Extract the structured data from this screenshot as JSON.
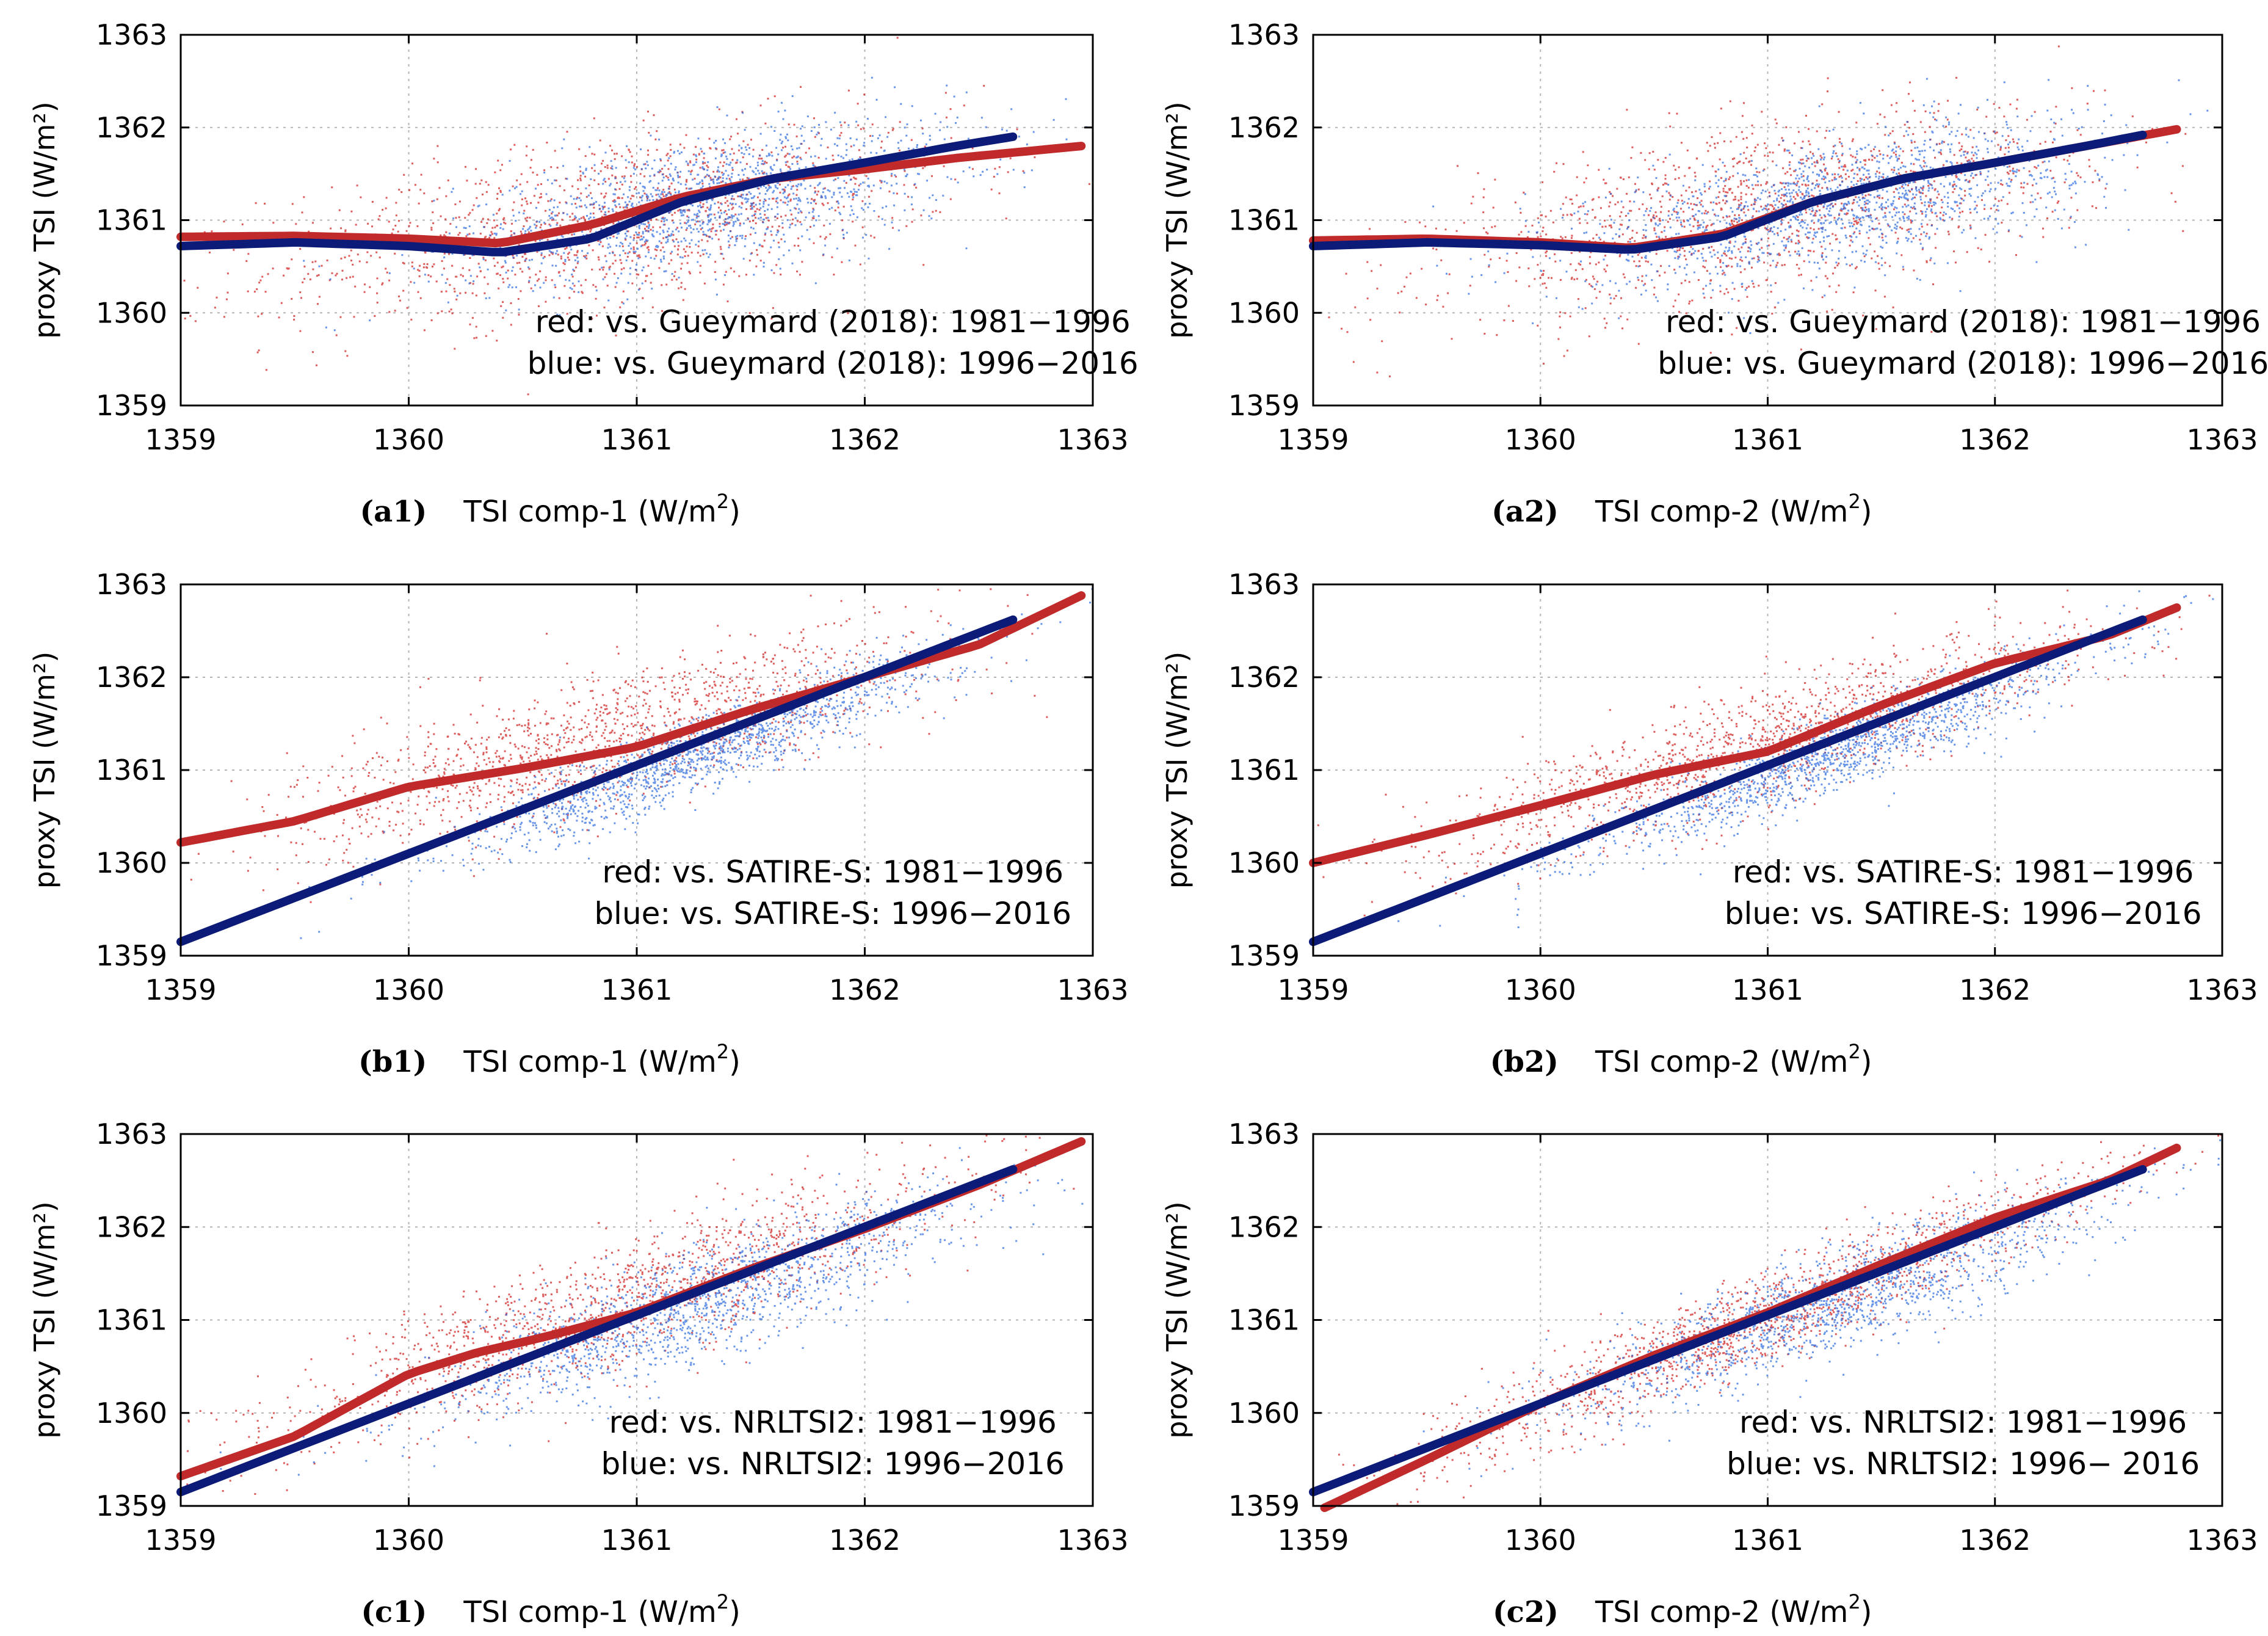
{
  "colors": {
    "red": "#d01818",
    "blue": "#2a6ae0",
    "red_curve": "#c02a2a",
    "blue_curve": "#0c1a78"
  },
  "chart_data": [
    {
      "id": "a1",
      "type": "scatter",
      "panel_label": "(a1)",
      "xlabel_text": "TSI comp-1 (W/m",
      "xlabel_sup": "2",
      "xlabel_close": ")",
      "ylabel": "proxy TSI (W/m²)",
      "xlim": [
        1359,
        1363
      ],
      "ylim": [
        1359,
        1363
      ],
      "xticks": [
        "1359",
        "1360",
        "1361",
        "1362",
        "1363"
      ],
      "yticks": [
        "1359",
        "1360",
        "1361",
        "1362",
        "1363"
      ],
      "legend": [
        "red: vs. Gueymard (2018): 1981−1996",
        "blue: vs. Gueymard (2018): 1996−2016"
      ],
      "scatter": {
        "red": {
          "cx": 1360.9,
          "cy": 1361.0,
          "sx": 0.75,
          "sy": 0.45,
          "slope": 0.35
        },
        "blue": {
          "cx": 1361.3,
          "cy": 1361.2,
          "sx": 0.55,
          "sy": 0.35,
          "slope": 0.45
        }
      },
      "series": [
        {
          "name": "red",
          "x": [
            1359.0,
            1359.5,
            1360.0,
            1360.4,
            1360.8,
            1361.2,
            1361.6,
            1362.0,
            1362.4,
            1362.95
          ],
          "y": [
            1360.82,
            1360.83,
            1360.8,
            1360.75,
            1360.95,
            1361.25,
            1361.45,
            1361.55,
            1361.67,
            1361.8
          ]
        },
        {
          "name": "blue",
          "x": [
            1359.0,
            1359.5,
            1360.0,
            1360.4,
            1360.8,
            1361.2,
            1361.6,
            1362.0,
            1362.4,
            1362.65
          ],
          "y": [
            1360.72,
            1360.76,
            1360.72,
            1360.65,
            1360.8,
            1361.2,
            1361.45,
            1361.62,
            1361.8,
            1361.9
          ]
        }
      ]
    },
    {
      "id": "a2",
      "type": "scatter",
      "panel_label": "(a2)",
      "xlabel_text": "TSI comp-2 (W/m",
      "xlabel_sup": "2",
      "xlabel_close": ")",
      "ylabel": "proxy TSI (W/m²)",
      "xlim": [
        1359,
        1363
      ],
      "ylim": [
        1359,
        1363
      ],
      "xticks": [
        "1359",
        "1360",
        "1361",
        "1362",
        "1363"
      ],
      "yticks": [
        "1359",
        "1360",
        "1361",
        "1362",
        "1363"
      ],
      "legend": [
        "red: vs. Gueymard (2018): 1981−1996",
        "blue: vs. Gueymard (2018): 1996−2016"
      ],
      "scatter": {
        "red": {
          "cx": 1361.0,
          "cy": 1361.1,
          "sx": 0.7,
          "sy": 0.45,
          "slope": 0.4
        },
        "blue": {
          "cx": 1361.3,
          "cy": 1361.2,
          "sx": 0.55,
          "sy": 0.35,
          "slope": 0.45
        }
      },
      "series": [
        {
          "name": "red",
          "x": [
            1359.0,
            1359.5,
            1360.0,
            1360.4,
            1360.8,
            1361.2,
            1361.6,
            1362.0,
            1362.4,
            1362.8
          ],
          "y": [
            1360.78,
            1360.8,
            1360.76,
            1360.7,
            1360.85,
            1361.2,
            1361.45,
            1361.62,
            1361.8,
            1361.98
          ]
        },
        {
          "name": "blue",
          "x": [
            1359.0,
            1359.5,
            1360.0,
            1360.4,
            1360.8,
            1361.2,
            1361.6,
            1362.0,
            1362.4,
            1362.65
          ],
          "y": [
            1360.72,
            1360.76,
            1360.73,
            1360.68,
            1360.82,
            1361.2,
            1361.45,
            1361.62,
            1361.8,
            1361.92
          ]
        }
      ]
    },
    {
      "id": "b1",
      "type": "scatter",
      "panel_label": "(b1)",
      "xlabel_text": "TSI comp-1 (W/m",
      "xlabel_sup": "2",
      "xlabel_close": ")",
      "ylabel": "proxy TSI (W/m²)",
      "xlim": [
        1359,
        1363
      ],
      "ylim": [
        1359,
        1363
      ],
      "xticks": [
        "1359",
        "1360",
        "1361",
        "1362",
        "1363"
      ],
      "yticks": [
        "1359",
        "1360",
        "1361",
        "1362",
        "1363"
      ],
      "legend": [
        "red: vs.  SATIRE-S: 1981−1996",
        "blue: vs. SATIRE-S: 1996−2016"
      ],
      "scatter": {
        "red": {
          "cx": 1360.9,
          "cy": 1361.35,
          "sx": 0.7,
          "sy": 0.35,
          "slope": 0.65
        },
        "blue": {
          "cx": 1361.3,
          "cy": 1361.2,
          "sx": 0.55,
          "sy": 0.2,
          "slope": 0.95
        }
      },
      "series": [
        {
          "name": "red",
          "x": [
            1359.0,
            1359.5,
            1360.0,
            1360.5,
            1361.0,
            1361.5,
            1362.0,
            1362.5,
            1362.95
          ],
          "y": [
            1360.22,
            1360.45,
            1360.82,
            1361.02,
            1361.25,
            1361.65,
            1362.0,
            1362.35,
            1362.88
          ]
        },
        {
          "name": "blue",
          "x": [
            1359.0,
            1362.65
          ],
          "y": [
            1359.15,
            1362.62
          ]
        }
      ]
    },
    {
      "id": "b2",
      "type": "scatter",
      "panel_label": "(b2)",
      "xlabel_text": "TSI comp-2 (W/m",
      "xlabel_sup": "2",
      "xlabel_close": ")",
      "ylabel": "proxy TSI (W/m²)",
      "xlim": [
        1359,
        1363
      ],
      "ylim": [
        1359,
        1363
      ],
      "xticks": [
        "1359",
        "1360",
        "1361",
        "1362",
        "1363"
      ],
      "yticks": [
        "1359",
        "1360",
        "1361",
        "1362",
        "1363"
      ],
      "legend": [
        "red: vs.  SATIRE-S: 1981−1996",
        "blue: vs. SATIRE-S: 1996−2016"
      ],
      "scatter": {
        "red": {
          "cx": 1361.0,
          "cy": 1361.3,
          "sx": 0.7,
          "sy": 0.3,
          "slope": 0.75
        },
        "blue": {
          "cx": 1361.3,
          "cy": 1361.2,
          "sx": 0.55,
          "sy": 0.2,
          "slope": 0.95
        }
      },
      "series": [
        {
          "name": "red",
          "x": [
            1359.0,
            1359.5,
            1360.0,
            1360.5,
            1361.0,
            1361.5,
            1362.0,
            1362.5,
            1362.8
          ],
          "y": [
            1360.0,
            1360.3,
            1360.62,
            1360.95,
            1361.2,
            1361.7,
            1362.15,
            1362.45,
            1362.75
          ]
        },
        {
          "name": "blue",
          "x": [
            1359.0,
            1362.65
          ],
          "y": [
            1359.15,
            1362.62
          ]
        }
      ]
    },
    {
      "id": "c1",
      "type": "scatter",
      "panel_label": "(c1)",
      "xlabel_text": "TSI comp-1 (W/m",
      "xlabel_sup": "2",
      "xlabel_close": ")",
      "ylabel": "proxy TSI (W/m²)",
      "xlim": [
        1359,
        1363
      ],
      "ylim": [
        1359,
        1363
      ],
      "xticks": [
        "1359",
        "1360",
        "1361",
        "1362",
        "1363"
      ],
      "yticks": [
        "1359",
        "1360",
        "1361",
        "1362",
        "1363"
      ],
      "legend": [
        "red: vs.  NRLTSI2: 1981−1996",
        "blue: vs. NRLTSI2: 1996−2016"
      ],
      "scatter": {
        "red": {
          "cx": 1360.9,
          "cy": 1361.15,
          "sx": 0.75,
          "sy": 0.35,
          "slope": 0.85
        },
        "blue": {
          "cx": 1361.3,
          "cy": 1361.2,
          "sx": 0.6,
          "sy": 0.3,
          "slope": 0.9
        }
      },
      "series": [
        {
          "name": "red",
          "x": [
            1359.0,
            1359.5,
            1360.0,
            1360.3,
            1360.6,
            1361.0,
            1361.5,
            1362.0,
            1362.5,
            1362.95
          ],
          "y": [
            1359.32,
            1359.75,
            1360.42,
            1360.65,
            1360.82,
            1361.08,
            1361.55,
            1361.98,
            1362.45,
            1362.92
          ]
        },
        {
          "name": "blue",
          "x": [
            1359.0,
            1362.65
          ],
          "y": [
            1359.15,
            1362.62
          ]
        }
      ]
    },
    {
      "id": "c2",
      "type": "scatter",
      "panel_label": "(c2)",
      "xlabel_text": "TSI comp-2 (W/m",
      "xlabel_sup": "2",
      "xlabel_close": ")",
      "ylabel": "proxy TSI (W/m²)",
      "xlim": [
        1359,
        1363
      ],
      "ylim": [
        1359,
        1363
      ],
      "xticks": [
        "1359",
        "1360",
        "1361",
        "1362",
        "1363"
      ],
      "yticks": [
        "1359",
        "1360",
        "1361",
        "1362",
        "1363"
      ],
      "legend": [
        "red: vs.  NRLTSI2: 1981−1996",
        "blue: vs. NRLTSI2: 1996− 2016"
      ],
      "scatter": {
        "red": {
          "cx": 1361.0,
          "cy": 1361.05,
          "sx": 0.75,
          "sy": 0.25,
          "slope": 1.0
        },
        "blue": {
          "cx": 1361.3,
          "cy": 1361.2,
          "sx": 0.6,
          "sy": 0.28,
          "slope": 0.9
        }
      },
      "series": [
        {
          "name": "red",
          "x": [
            1359.05,
            1359.5,
            1360.0,
            1360.5,
            1361.0,
            1361.5,
            1362.0,
            1362.5,
            1362.8
          ],
          "y": [
            1358.98,
            1359.5,
            1360.1,
            1360.62,
            1361.08,
            1361.6,
            1362.1,
            1362.5,
            1362.85
          ]
        },
        {
          "name": "blue",
          "x": [
            1359.0,
            1362.65
          ],
          "y": [
            1359.15,
            1362.62
          ]
        }
      ]
    }
  ]
}
